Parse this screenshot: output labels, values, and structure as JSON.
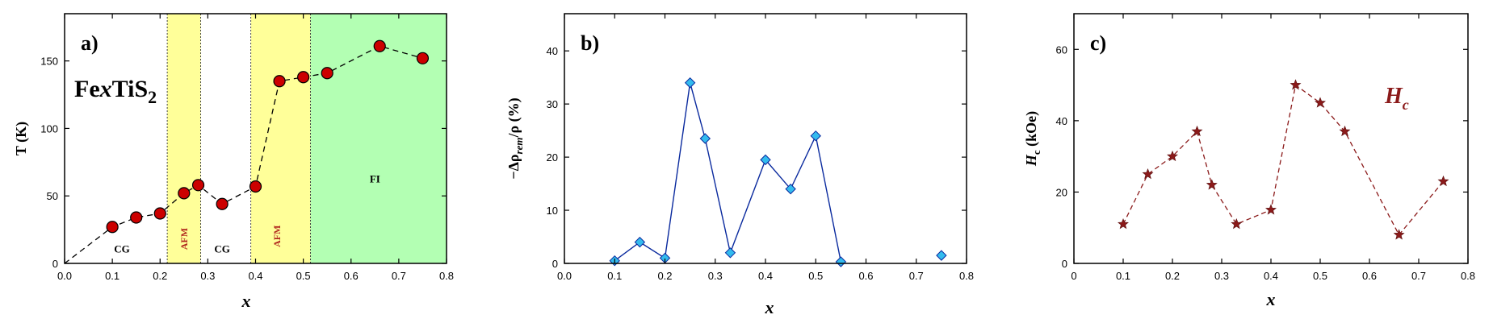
{
  "chart_data": [
    {
      "type": "scatter",
      "panel_label": "a)",
      "formula_label": "FexTiS2",
      "formula": {
        "base": "Fe",
        "x": "x",
        "rest": "TiS",
        "sub": "2"
      },
      "xlabel": "x",
      "ylabel": "T (K)",
      "xlim": [
        0.0,
        0.8
      ],
      "ylim": [
        0,
        185
      ],
      "xticks": [
        "0.0",
        "0.1",
        "0.2",
        "0.3",
        "0.4",
        "0.5",
        "0.6",
        "0.7",
        "0.8"
      ],
      "yticks": [
        "0",
        "50",
        "100",
        "150"
      ],
      "colors": {
        "afm": "#ffff99",
        "fi": "#b3ffb3",
        "marker": "#cc0000",
        "line": "#000000"
      },
      "regions": [
        {
          "label": "AFM",
          "from": 0.215,
          "to": 0.285,
          "color": "afm"
        },
        {
          "label": "AFM",
          "from": 0.39,
          "to": 0.515,
          "color": "afm"
        },
        {
          "label": "FI",
          "from": 0.515,
          "to": 0.8,
          "color": "fi"
        }
      ],
      "region_labels": [
        {
          "text": "CG",
          "x": 0.12,
          "y": 8
        },
        {
          "text": "AFM",
          "x": 0.25,
          "y": 10,
          "rotated": true
        },
        {
          "text": "CG",
          "x": 0.33,
          "y": 8
        },
        {
          "text": "AFM",
          "x": 0.445,
          "y": 12,
          "rotated": true
        },
        {
          "text": "FI",
          "x": 0.65,
          "y": 60
        }
      ],
      "boundaries": [
        0.215,
        0.285,
        0.39,
        0.515
      ],
      "series": [
        {
          "x": [
            0.0,
            0.1,
            0.15,
            0.2,
            0.25,
            0.28,
            0.33,
            0.4,
            0.45,
            0.5,
            0.55,
            0.66,
            0.75
          ],
          "y": [
            0,
            27,
            34,
            37,
            52,
            58,
            44,
            57,
            135,
            138,
            141,
            161,
            152
          ],
          "marker_from_index": 1
        }
      ]
    },
    {
      "type": "line",
      "panel_label": "b)",
      "xlabel": "x",
      "ylabel": "−Δρrem/ρ (%)",
      "ylabel_parts": {
        "pre": "−Δρ",
        "sub": "rem",
        "post": "/ρ (%)"
      },
      "xlim": [
        0.0,
        0.8
      ],
      "ylim": [
        0,
        47
      ],
      "xticks": [
        "0.0",
        "0.1",
        "0.2",
        "0.3",
        "0.4",
        "0.5",
        "0.6",
        "0.7",
        "0.8"
      ],
      "yticks": [
        "0",
        "10",
        "20",
        "30",
        "40"
      ],
      "colors": {
        "line": "#0a2a9e",
        "marker": "#33bbee"
      },
      "series": [
        {
          "x": [
            0.1,
            0.15,
            0.2,
            0.25,
            0.28,
            0.33,
            0.4,
            0.45,
            0.5,
            0.55
          ],
          "y": [
            0.5,
            4,
            1,
            34,
            23.5,
            2,
            19.5,
            14,
            24,
            0.3
          ]
        },
        {
          "x": [
            0.75
          ],
          "y": [
            1.5
          ],
          "unconnected": true
        }
      ]
    },
    {
      "type": "line",
      "panel_label": "c)",
      "xlabel": "x",
      "ylabel": "Hc (kOe)",
      "ylabel_parts": {
        "pre": "H",
        "sub": "c",
        "post": " (kOe)"
      },
      "legend": {
        "text": "H",
        "sub": "c"
      },
      "xlim": [
        0.0,
        0.8
      ],
      "ylim": [
        0,
        70
      ],
      "xticks": [
        "0",
        "0.1",
        "0.2",
        "0.3",
        "0.4",
        "0.5",
        "0.6",
        "0.7",
        "0.8"
      ],
      "yticks": [
        "0",
        "20",
        "40",
        "60"
      ],
      "colors": {
        "line": "#8b1a1a",
        "marker": "#8b1a1a"
      },
      "series": [
        {
          "x": [
            0.1,
            0.15,
            0.2,
            0.25,
            0.28,
            0.33,
            0.4,
            0.45,
            0.5,
            0.55,
            0.66,
            0.75
          ],
          "y": [
            11,
            25,
            30,
            37,
            22,
            11,
            15,
            50,
            45,
            37,
            8,
            23
          ]
        }
      ]
    }
  ]
}
